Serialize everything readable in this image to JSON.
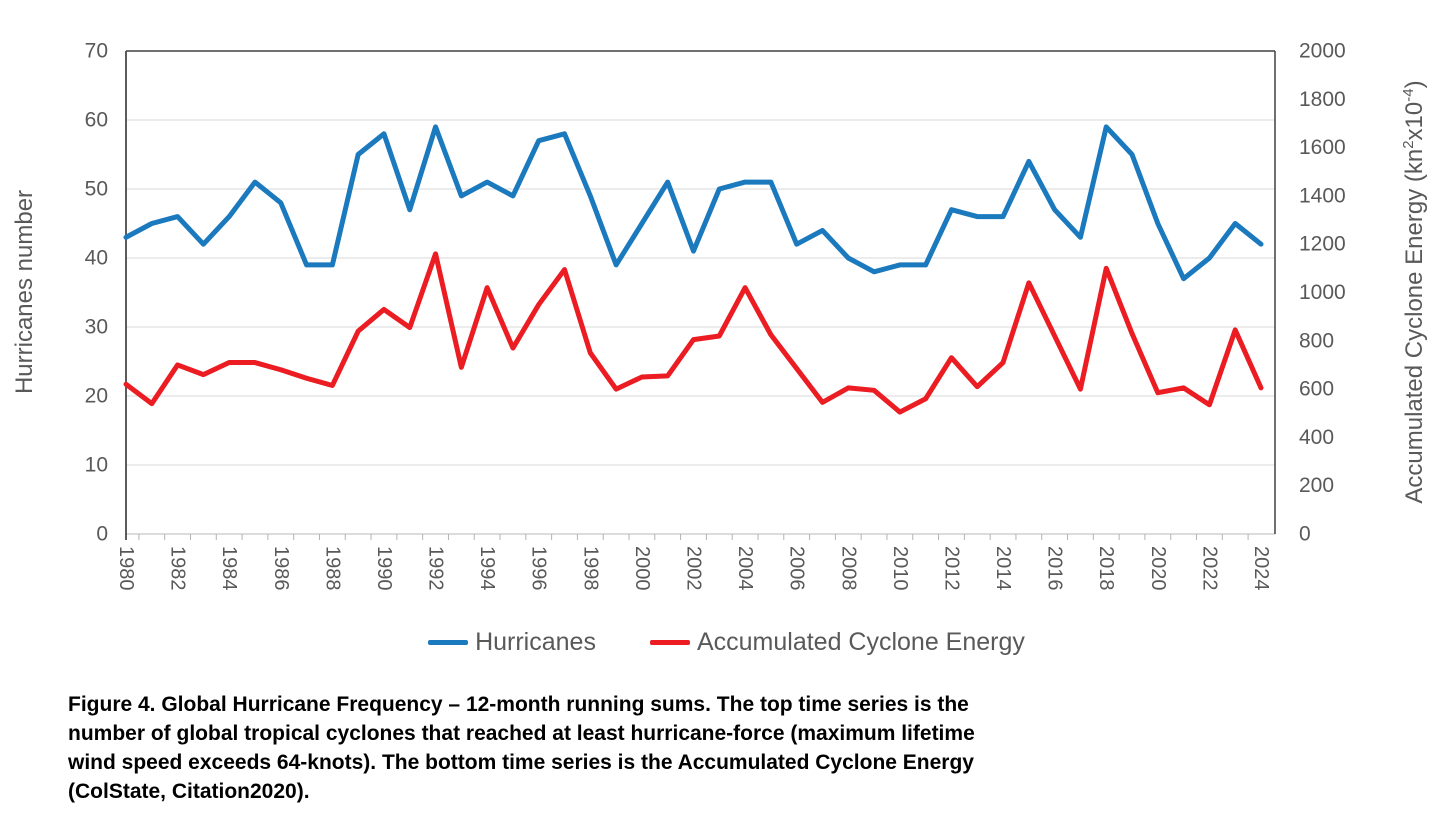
{
  "figure": {
    "caption_lines": [
      "Figure 4. Global Hurricane Frequency – 12-month running sums. The top time series is the",
      "number of global tropical cyclones that reached at least hurricane-force (maximum lifetime",
      "wind speed exceeds 64-knots). The bottom time series is the Accumulated Cyclone Energy",
      "(ColState, Citation2020)."
    ],
    "legend": [
      {
        "label": "Hurricanes",
        "color": "#1b79be"
      },
      {
        "label": "Accumulated Cyclone Energy",
        "color": "#eb1c22"
      }
    ],
    "colors": {
      "hurricanes_line": "#1b79be",
      "ace_line": "#eb1c22",
      "gridline": "#d9d9d9",
      "plot_border": "#404040",
      "bottom_axis": "#c6c6c6",
      "tick_mark": "#b3b3b3",
      "label_text": "#595959",
      "caption_text": "#000000"
    }
  },
  "chart_data": {
    "type": "line",
    "x": [
      1980,
      1981,
      1982,
      1983,
      1984,
      1985,
      1986,
      1987,
      1988,
      1989,
      1990,
      1991,
      1992,
      1993,
      1994,
      1995,
      1996,
      1997,
      1998,
      1999,
      2000,
      2001,
      2002,
      2003,
      2004,
      2005,
      2006,
      2007,
      2008,
      2009,
      2010,
      2011,
      2012,
      2013,
      2014,
      2015,
      2016,
      2017,
      2018,
      2019,
      2020,
      2021,
      2022,
      2023,
      2024
    ],
    "x_tick_labels": [
      "1980",
      "1982",
      "1984",
      "1986",
      "1988",
      "1990",
      "1992",
      "1994",
      "1996",
      "1998",
      "2000",
      "2002",
      "2004",
      "2006",
      "2008",
      "2010",
      "2012",
      "2014",
      "2016",
      "2018",
      "2020",
      "2022",
      "2024"
    ],
    "series": [
      {
        "name": "Hurricanes",
        "axis": "left",
        "color": "#1b79be",
        "values": [
          43,
          45,
          46,
          42,
          46,
          51,
          48,
          39,
          39,
          55,
          58,
          47,
          59,
          49,
          51,
          49,
          57,
          58,
          49,
          39,
          45,
          51,
          41,
          50,
          51,
          51,
          42,
          44,
          40,
          38,
          39,
          39,
          47,
          46,
          46,
          54,
          47,
          43,
          59,
          55,
          45,
          37,
          40,
          45,
          42
        ]
      },
      {
        "name": "Accumulated Cyclone Energy",
        "axis": "right",
        "color": "#eb1c22",
        "values": [
          620,
          540,
          700,
          660,
          710,
          710,
          680,
          645,
          615,
          840,
          930,
          855,
          1160,
          690,
          1020,
          770,
          950,
          1095,
          750,
          600,
          650,
          655,
          805,
          820,
          1020,
          825,
          685,
          545,
          605,
          595,
          505,
          560,
          730,
          610,
          710,
          1040,
          820,
          600,
          1100,
          830,
          585,
          605,
          535,
          845,
          605
        ]
      }
    ],
    "left_axis": {
      "title": "Hurricanes number",
      "min": 0,
      "max": 70,
      "step": 10,
      "tick_labels": [
        "0",
        "10",
        "20",
        "30",
        "40",
        "50",
        "60",
        "70"
      ]
    },
    "right_axis": {
      "title_pre": "Accumulated Cyclone Energy (kn",
      "title_sup1": "2",
      "title_mid": "x10",
      "title_sup2": "-4",
      "title_post": ")",
      "min": 0,
      "max": 2000,
      "step": 200,
      "tick_labels": [
        "0",
        "200",
        "400",
        "600",
        "800",
        "1000",
        "1200",
        "1400",
        "1600",
        "1800",
        "2000"
      ]
    },
    "grid": "horizontal",
    "legend_position": "bottom",
    "title": "",
    "xlabel": "",
    "ylabel_left": "Hurricanes number",
    "ylabel_right": "Accumulated Cyclone Energy (kn2x10-4)"
  }
}
